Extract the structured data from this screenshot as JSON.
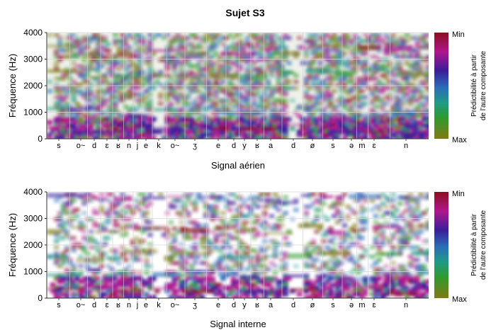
{
  "figure": {
    "title": "Sujet S3"
  },
  "chart_data": [
    {
      "type": "heatmap",
      "title": "",
      "xlabel": "Signal aérien",
      "ylabel": "Fréquence (Hz)",
      "ylim": [
        0,
        4000
      ],
      "yticks": [
        0,
        1000,
        2000,
        3000,
        4000
      ],
      "x_tick_labels": [
        "s",
        "o~",
        "d",
        "ɛ",
        "ʁ",
        "n",
        "j",
        "e",
        "k",
        "o~",
        "ʒ",
        "e",
        "d",
        "y",
        "ʁ",
        "a",
        "d",
        "ø",
        "s",
        "ə",
        "m",
        "ɛ",
        "n"
      ],
      "colorbar": {
        "label_line1": "Prédictibilité à partir",
        "label_line2": "de l'autre composante",
        "top": "Min",
        "bottom": "Max"
      },
      "grid": true
    },
    {
      "type": "heatmap",
      "title": "",
      "xlabel": "Signal interne",
      "ylabel": "Fréquence (Hz)",
      "ylim": [
        0,
        4000
      ],
      "yticks": [
        0,
        1000,
        2000,
        3000,
        4000
      ],
      "x_tick_labels": [
        "s",
        "o~",
        "d",
        "ɛ",
        "ʁ",
        "n",
        "j",
        "e",
        "k",
        "o~",
        "ʒ",
        "e",
        "d",
        "y",
        "ʁ",
        "a",
        "d",
        "ø",
        "s",
        "ə",
        "m",
        "ɛ",
        "n"
      ],
      "colorbar": {
        "label_line1": "Prédictibilité à partir",
        "label_line2": "de l'autre composante",
        "top": "Min",
        "bottom": "Max"
      },
      "grid": true
    }
  ]
}
